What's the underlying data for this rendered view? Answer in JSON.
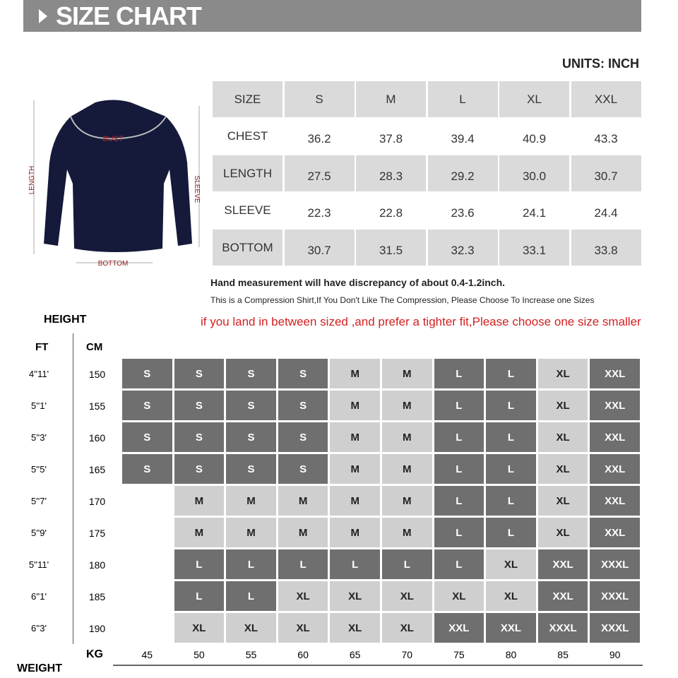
{
  "header": {
    "title": "SIZE CHART"
  },
  "units": "UNITS: INCH",
  "figure": {
    "length": "LENGTH",
    "sleeve": "SLEEVE",
    "bottom": "BOTTOM",
    "bust": "BUST"
  },
  "size_table": {
    "header": [
      "SIZE",
      "S",
      "M",
      "L",
      "XL",
      "XXL"
    ],
    "rows": [
      [
        "CHEST",
        "36.2",
        "37.8",
        "39.4",
        "40.9",
        "43.3"
      ],
      [
        "LENGTH",
        "27.5",
        "28.3",
        "29.2",
        "30.0",
        "30.7"
      ],
      [
        "SLEEVE",
        "22.3",
        "22.8",
        "23.6",
        "24.1",
        "24.4"
      ],
      [
        "BOTTOM",
        "30.7",
        "31.5",
        "32.3",
        "33.1",
        "33.8"
      ]
    ]
  },
  "notes": [
    "Hand measurement will have discrepancy of about 0.4-1.2inch.",
    "This is a Compression Shirt,If You Don't Like The Compression, Please Choose To Increase one Sizes",
    "if you land in between sized ,and prefer a tighter fit,Please choose one size smaller"
  ],
  "grid": {
    "height_label": "HEIGHT",
    "ft_label": "FT",
    "cm_label": "CM",
    "kg_label": "KG",
    "weight_label": "WEIGHT",
    "kg": [
      "45",
      "50",
      "55",
      "60",
      "65",
      "70",
      "75",
      "80",
      "85",
      "90"
    ],
    "rows": [
      {
        "ft": "4''11'",
        "cm": "150",
        "cells": [
          "S",
          "S",
          "S",
          "S",
          "M",
          "M",
          "L",
          "L",
          "XL",
          "XXL"
        ]
      },
      {
        "ft": "5''1'",
        "cm": "155",
        "cells": [
          "S",
          "S",
          "S",
          "S",
          "M",
          "M",
          "L",
          "L",
          "XL",
          "XXL"
        ]
      },
      {
        "ft": "5''3'",
        "cm": "160",
        "cells": [
          "S",
          "S",
          "S",
          "S",
          "M",
          "M",
          "L",
          "L",
          "XL",
          "XXL"
        ]
      },
      {
        "ft": "5''5'",
        "cm": "165",
        "cells": [
          "S",
          "S",
          "S",
          "S",
          "M",
          "M",
          "L",
          "L",
          "XL",
          "XXL"
        ]
      },
      {
        "ft": "5''7'",
        "cm": "170",
        "cells": [
          null,
          "M",
          "M",
          "M",
          "M",
          "M",
          "L",
          "L",
          "XL",
          "XXL"
        ]
      },
      {
        "ft": "5''9'",
        "cm": "175",
        "cells": [
          null,
          "M",
          "M",
          "M",
          "M",
          "M",
          "L",
          "L",
          "XL",
          "XXL"
        ]
      },
      {
        "ft": "5''11'",
        "cm": "180",
        "cells": [
          null,
          "L",
          "L",
          "L",
          "L",
          "L",
          "L",
          "XL",
          "XXL",
          "XXXL"
        ]
      },
      {
        "ft": "6''1'",
        "cm": "185",
        "cells": [
          null,
          "L",
          "L",
          "XL",
          "XL",
          "XL",
          "XL",
          "XL",
          "XXL",
          "XXXL"
        ]
      },
      {
        "ft": "6''3'",
        "cm": "190",
        "cells": [
          null,
          "XL",
          "XL",
          "XL",
          "XL",
          "XL",
          "XXL",
          "XXL",
          "XXXL",
          "XXXL"
        ]
      }
    ]
  }
}
